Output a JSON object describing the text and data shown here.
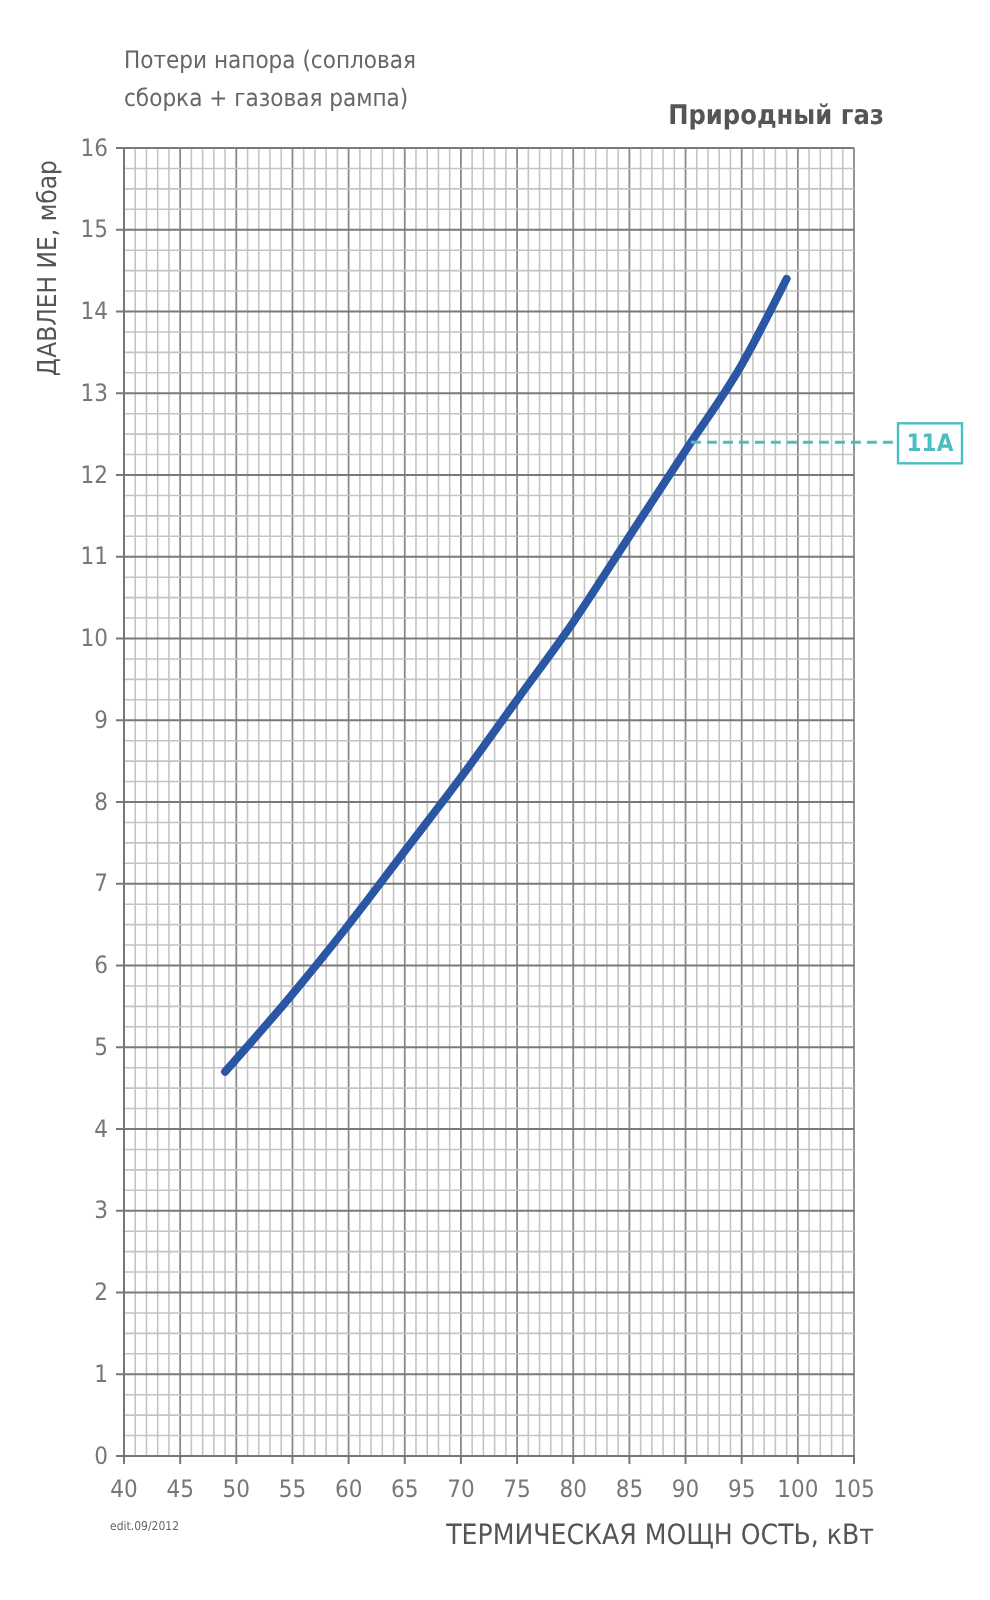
{
  "chart_data": {
    "type": "line",
    "title": "Потери напора (сопловая сборка + газовая рампа)",
    "subtitle": "Природный газ",
    "xlabel": "ТЕРМИЧЕСКАЯ МОЩН ОСТЬ, кВт",
    "ylabel": "ДАВЛЕН ИЕ, мбар",
    "annotations": [
      "edit.09/2012"
    ],
    "series": [
      {
        "color": "#2a56a4",
        "x": [
          49,
          55,
          60,
          65,
          70,
          75,
          80,
          85,
          90,
          95,
          99
        ],
        "values": [
          4.7,
          5.65,
          6.5,
          7.4,
          8.3,
          9.25,
          10.2,
          11.25,
          12.3,
          13.35,
          14.4
        ]
      }
    ],
    "xlim": [
      40,
      105
    ],
    "xticks": [
      40,
      45,
      50,
      55,
      60,
      65,
      70,
      75,
      80,
      85,
      90,
      95,
      100,
      105
    ],
    "ylim": [
      0,
      16
    ],
    "yticks": [
      0,
      1,
      2,
      3,
      4,
      5,
      6,
      7,
      8,
      9,
      10,
      11,
      12,
      13,
      14,
      15,
      16
    ],
    "grid": true,
    "line_style": "solid",
    "marker": "none",
    "ref_lines": [
      {
        "axis": "y",
        "value": 12.4,
        "label": "11A",
        "color": "#4bbfc0",
        "line_style": "dashed"
      }
    ]
  }
}
